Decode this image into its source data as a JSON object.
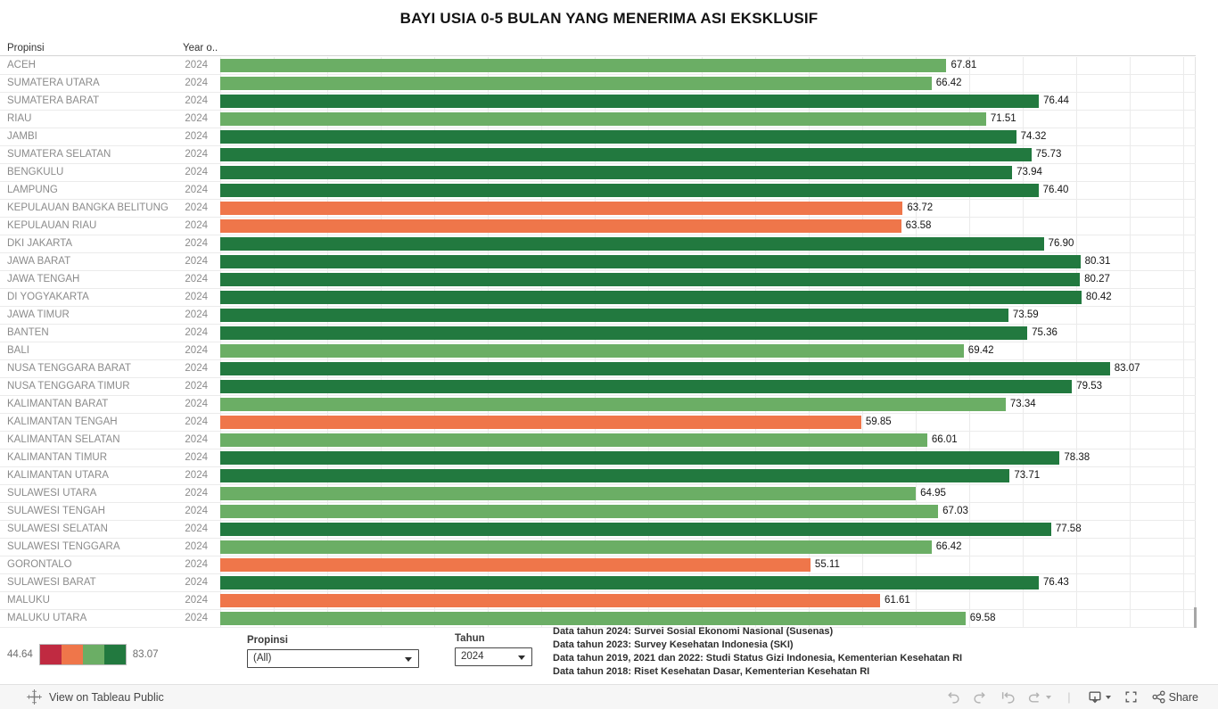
{
  "title": "BAYI USIA 0-5 BULAN YANG MENERIMA ASI EKSKLUSIF",
  "columns": {
    "propinsi": "Propinsi",
    "year": "Year o.."
  },
  "chart_data": {
    "type": "bar",
    "orientation": "horizontal",
    "axis_max": 91,
    "gridline_step": 5,
    "year": "2024",
    "categories": [
      "ACEH",
      "SUMATERA UTARA",
      "SUMATERA BARAT",
      "RIAU",
      "JAMBI",
      "SUMATERA SELATAN",
      "BENGKULU",
      "LAMPUNG",
      "KEPULAUAN BANGKA BELITUNG",
      "KEPULAUAN RIAU",
      "DKI JAKARTA",
      "JAWA BARAT",
      "JAWA TENGAH",
      "DI YOGYAKARTA",
      "JAWA TIMUR",
      "BANTEN",
      "BALI",
      "NUSA TENGGARA BARAT",
      "NUSA TENGGARA TIMUR",
      "KALIMANTAN BARAT",
      "KALIMANTAN TENGAH",
      "KALIMANTAN SELATAN",
      "KALIMANTAN TIMUR",
      "KALIMANTAN UTARA",
      "SULAWESI UTARA",
      "SULAWESI TENGAH",
      "SULAWESI SELATAN",
      "SULAWESI TENGGARA",
      "GORONTALO",
      "SULAWESI BARAT",
      "MALUKU",
      "MALUKU UTARA"
    ],
    "values": [
      67.81,
      66.42,
      76.44,
      71.51,
      74.32,
      75.73,
      73.94,
      76.4,
      63.72,
      63.58,
      76.9,
      80.31,
      80.27,
      80.42,
      73.59,
      75.36,
      69.42,
      83.07,
      79.53,
      73.34,
      59.85,
      66.01,
      78.38,
      73.71,
      64.95,
      67.03,
      77.58,
      66.42,
      55.11,
      76.43,
      61.61,
      69.58
    ],
    "color_scale": {
      "min": 44.64,
      "max": 83.07,
      "colors": [
        "#c02a41",
        "#ef764a",
        "#6bae65",
        "#22793f"
      ],
      "legend_min_label": "44.64",
      "legend_max_label": "83.07"
    }
  },
  "filters": {
    "propinsi": {
      "label": "Propinsi",
      "value": "(All)"
    },
    "tahun": {
      "label": "Tahun",
      "value": "2024"
    }
  },
  "notes": [
    "Data tahun 2024: Survei Sosial Ekonomi Nasional (Susenas)",
    "Data tahun 2023: Survey Kesehatan Indonesia (SKI)",
    "Data tahun 2019, 2021 dan 2022: Studi Status  Gizi Indonesia, Kementerian Kesehatan RI",
    "Data tahun 2018: Riset Kesehatan Dasar, Kementerian Kesehatan RI"
  ],
  "toolbar": {
    "view_on_label": "View on Tableau Public",
    "share_label": "Share"
  }
}
